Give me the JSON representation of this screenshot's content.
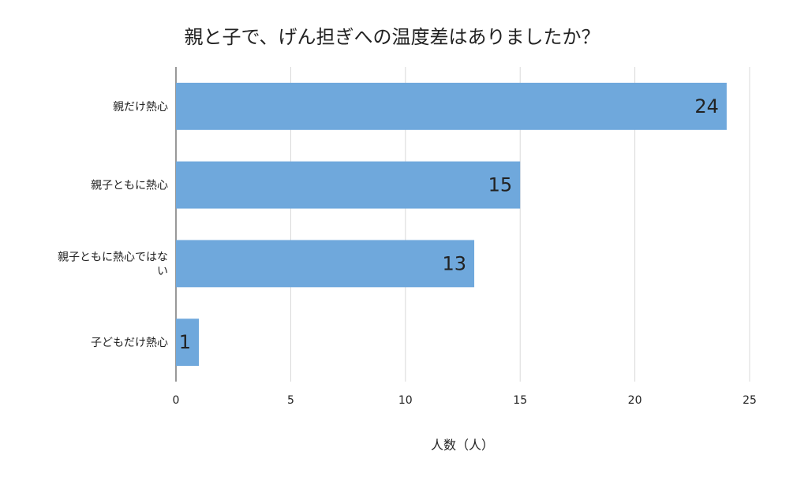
{
  "chart_data": {
    "type": "bar",
    "orientation": "horizontal",
    "title": "親と子で、げん担ぎへの温度差はありましたか？",
    "categories": [
      [
        "親だけ熱心"
      ],
      [
        "親子ともに熱心"
      ],
      [
        "親子ともに熱心ではな",
        "い"
      ],
      [
        "子どもだけ熱心"
      ]
    ],
    "values": [
      24,
      15,
      13,
      1
    ],
    "xlabel": "人数（人）",
    "ylabel": "",
    "xlim": [
      0,
      25
    ],
    "xticks": [
      0,
      5,
      10,
      15,
      20,
      25
    ],
    "grid": "vertical",
    "legend": "none",
    "bar_color": "#6fa8dc",
    "data_label_position": "inside-end"
  }
}
